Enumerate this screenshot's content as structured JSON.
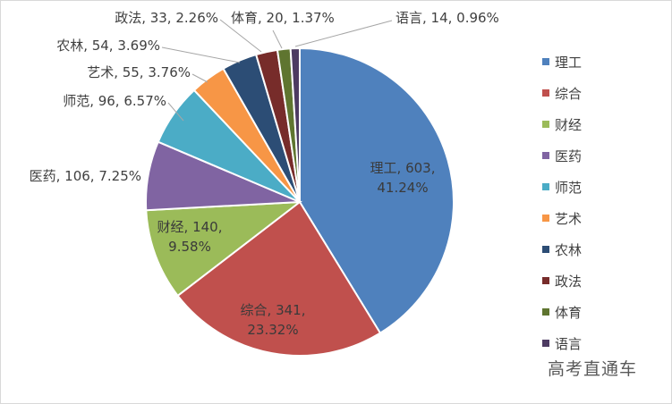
{
  "chart_data": {
    "type": "pie",
    "categories": [
      "理工",
      "综合",
      "财经",
      "医药",
      "师范",
      "艺术",
      "农林",
      "政法",
      "体育",
      "语言"
    ],
    "values": [
      603,
      341,
      140,
      106,
      96,
      55,
      54,
      33,
      20,
      14
    ],
    "percent_labels": [
      "41.24%",
      "23.32%",
      "9.58%",
      "7.25%",
      "6.57%",
      "3.76%",
      "3.69%",
      "2.26%",
      "1.37%",
      "0.96%"
    ],
    "colors": [
      "#4f81bd",
      "#c0504d",
      "#9bbb59",
      "#8064a2",
      "#4bacc6",
      "#f79646",
      "#2c4d75",
      "#772c2a",
      "#5f7530",
      "#4d3b62"
    ],
    "data_labels": [
      {
        "l1": "理工, 603,",
        "l2": "41.24%"
      },
      {
        "l1": "综合, 341,",
        "l2": "23.32%"
      },
      {
        "l1": "财经, 140,",
        "l2": "9.58%"
      },
      {
        "l1": "医药, 106, 7.25%"
      },
      {
        "l1": "师范, 96, 6.57%"
      },
      {
        "l1": "艺术, 55, 3.76%"
      },
      {
        "l1": "农林, 54, 3.69%"
      },
      {
        "l1": "政法, 33, 2.26%"
      },
      {
        "l1": "体育, 20, 1.37%"
      },
      {
        "l1": "语言, 14, 0.96%"
      }
    ],
    "legend_position": "right",
    "start_angle": "12 o'clock, clockwise"
  },
  "watermark": "高考直通车"
}
